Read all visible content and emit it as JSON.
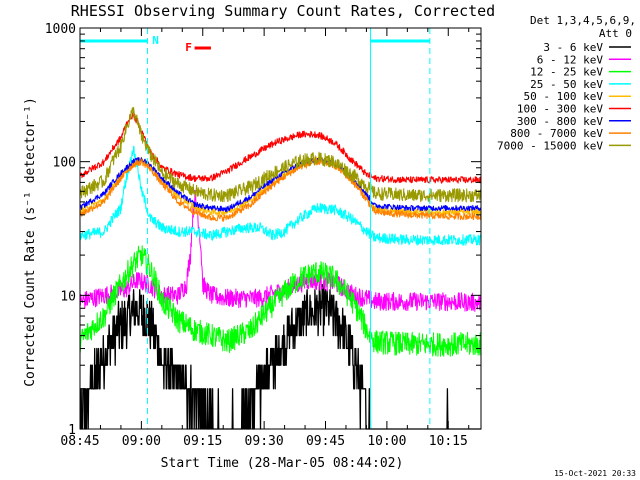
{
  "chart_data": {
    "type": "line",
    "title": "RHESSI Observing Summary Count Rates, Corrected",
    "xlabel": "Start Time (28-Mar-05 08:44:02)",
    "ylabel": "Corrected Count Rate (s⁻¹ detector⁻¹)",
    "yscale": "log",
    "ylim": [
      1,
      1000
    ],
    "xlim_minutes_since_0845": [
      0,
      98
    ],
    "x_ticks": [
      "08:45",
      "09:00",
      "09:15",
      "09:30",
      "09:45",
      "10:00",
      "10:15"
    ],
    "y_ticks": [
      "1",
      "10",
      "100",
      "1000"
    ],
    "legend_header": [
      "Det 1,3,4,5,6,9,",
      "Att 0"
    ],
    "legend_position": "right",
    "night_intervals": [
      [
        -2,
        16.5
      ],
      [
        71,
        85.5
      ]
    ],
    "night_label": "N",
    "flare_label": "F",
    "flare_interval": [
      28,
      32
    ],
    "timestamp": "15-Oct-2021 20:33",
    "series": [
      {
        "name": "3 - 6 keV",
        "color": "#000000",
        "key_x": [
          0,
          5,
          10,
          14,
          17,
          20,
          23,
          25,
          28,
          30,
          33,
          36,
          40,
          44,
          48,
          52,
          56,
          60,
          64,
          66,
          68,
          70,
          72,
          76
        ],
        "key_y": [
          1.0,
          3,
          6,
          8,
          6.5,
          3,
          2.5,
          2,
          1.8,
          1.5,
          1,
          1,
          1.2,
          2,
          3.5,
          5.5,
          7.5,
          8,
          6,
          4,
          2.5,
          1.3,
          1.0,
          1.0
        ]
      },
      {
        "name": "6 - 12 keV",
        "color": "#ff00ff",
        "key_x": [
          0,
          6,
          11,
          14,
          17,
          20,
          24,
          26,
          27,
          28,
          29,
          30,
          32,
          36,
          44,
          50,
          56,
          62,
          67,
          70,
          72,
          80,
          88,
          98
        ],
        "key_y": [
          9,
          10,
          11,
          13,
          12,
          10,
          10,
          12,
          20,
          55,
          35,
          12,
          10,
          9.5,
          9.5,
          11,
          13,
          12.5,
          10,
          9.5,
          9,
          9,
          9,
          8.8
        ]
      },
      {
        "name": "12 - 25 keV",
        "color": "#00ff00",
        "key_x": [
          0,
          6,
          10,
          13,
          15,
          17,
          20,
          24,
          28,
          32,
          36,
          42,
          48,
          54,
          58,
          62,
          66,
          70,
          72,
          80,
          90,
          98
        ],
        "key_y": [
          4.5,
          7,
          12,
          17,
          20,
          16,
          9,
          6.5,
          5.5,
          5,
          4.5,
          5.5,
          9,
          13.5,
          15,
          13.5,
          9.5,
          5.5,
          4.5,
          4.3,
          4.3,
          4.3
        ]
      },
      {
        "name": "25 - 50 keV",
        "color": "#00ffff",
        "key_x": [
          0,
          6,
          10,
          12,
          13,
          15,
          17,
          20,
          24,
          28,
          32,
          36,
          40,
          44,
          47,
          50,
          54,
          58,
          62,
          66,
          70,
          72,
          80,
          90,
          98
        ],
        "key_y": [
          28,
          30,
          45,
          90,
          125,
          60,
          38,
          32,
          30,
          30,
          28,
          30,
          32,
          32,
          28,
          30,
          38,
          45,
          44,
          38,
          30,
          27,
          26,
          26,
          26
        ]
      },
      {
        "name": "50 - 100 keV",
        "color": "#ffbb00",
        "key_x": [
          0,
          6,
          10,
          13,
          15,
          17,
          20,
          24,
          28,
          32,
          36,
          42,
          48,
          54,
          58,
          62,
          66,
          70,
          72,
          80,
          90,
          98
        ],
        "key_y": [
          42,
          52,
          78,
          96,
          102,
          93,
          72,
          55,
          46,
          42,
          42,
          52,
          72,
          95,
          103,
          97,
          76,
          55,
          44,
          42,
          42,
          42
        ]
      },
      {
        "name": "100 - 300 keV",
        "color": "#ff0000",
        "key_x": [
          0,
          6,
          10,
          12,
          13,
          15,
          17,
          20,
          24,
          28,
          32,
          36,
          42,
          48,
          54,
          58,
          62,
          66,
          70,
          72,
          80,
          90,
          98
        ],
        "key_y": [
          78,
          100,
          150,
          210,
          225,
          170,
          120,
          90,
          80,
          75,
          75,
          85,
          110,
          140,
          160,
          160,
          140,
          105,
          80,
          75,
          73,
          73,
          73
        ]
      },
      {
        "name": "300 - 800 keV",
        "color": "#0000ff",
        "key_x": [
          0,
          6,
          10,
          13,
          15,
          17,
          20,
          24,
          28,
          32,
          36,
          42,
          48,
          54,
          58,
          62,
          66,
          70,
          72,
          80,
          90,
          98
        ],
        "key_y": [
          45,
          58,
          82,
          100,
          104,
          95,
          75,
          58,
          48,
          45,
          44,
          55,
          76,
          97,
          104,
          98,
          78,
          57,
          47,
          45,
          45,
          45
        ]
      },
      {
        "name": "800 - 7000 keV",
        "color": "#ff8000",
        "key_x": [
          0,
          6,
          10,
          13,
          15,
          17,
          20,
          24,
          28,
          32,
          36,
          42,
          48,
          54,
          58,
          62,
          66,
          70,
          72,
          80,
          90,
          98
        ],
        "key_y": [
          40,
          50,
          75,
          95,
          100,
          90,
          68,
          50,
          42,
          38,
          38,
          48,
          70,
          92,
          100,
          95,
          74,
          52,
          42,
          40,
          39,
          39
        ]
      },
      {
        "name": "7000 - 15000 keV",
        "color": "#999900",
        "key_x": [
          0,
          6,
          10,
          13,
          15,
          17,
          20,
          24,
          28,
          32,
          36,
          42,
          48,
          54,
          58,
          62,
          66,
          70,
          72,
          80,
          90,
          98
        ],
        "key_y": [
          58,
          72,
          130,
          240,
          155,
          115,
          82,
          68,
          60,
          56,
          56,
          65,
          85,
          102,
          106,
          100,
          82,
          66,
          58,
          56,
          56,
          56
        ]
      }
    ]
  }
}
